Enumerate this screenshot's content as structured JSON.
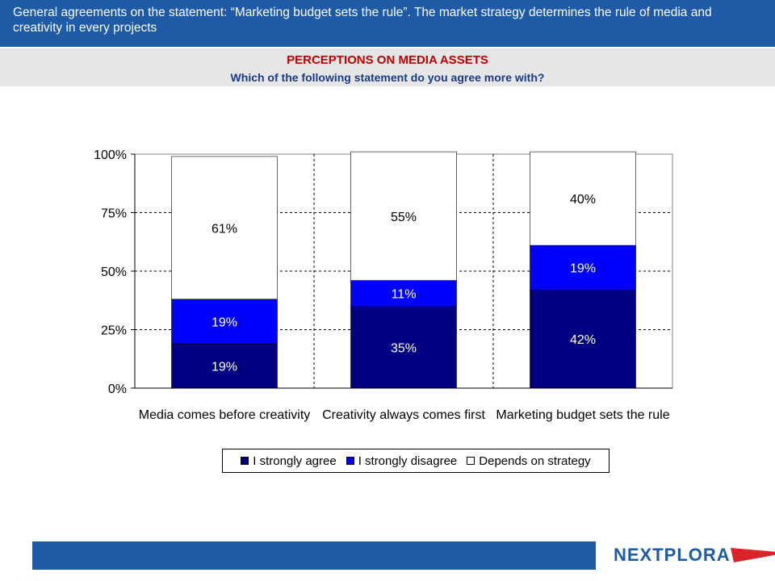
{
  "header": {
    "description": "General agreements on the statement: “Marketing budget sets the rule”. The market strategy determines the rule of media and creativity in every projects"
  },
  "section": {
    "title": "PERCEPTIONS ON MEDIA ASSETS",
    "question": "Which of the following statement do you agree more with?"
  },
  "colors": {
    "strongly_agree": "#000080",
    "strongly_disagree": "#0000ff",
    "depends": "#ffffff",
    "header_bar": "#1f5aa6"
  },
  "chart_data": {
    "type": "bar",
    "stacked": true,
    "categories": [
      "Media comes before creativity",
      "Creativity always comes first",
      "Marketing budget sets the rule"
    ],
    "series": [
      {
        "name": "I strongly agree",
        "values": [
          19,
          35,
          42
        ],
        "labels": [
          "19%",
          "35%",
          "42%"
        ]
      },
      {
        "name": "I strongly disagree",
        "values": [
          19,
          11,
          19
        ],
        "labels": [
          "19%",
          "11%",
          "19%"
        ]
      },
      {
        "name": "Depends on strategy",
        "values": [
          61,
          55,
          40
        ],
        "labels": [
          "61%",
          "55%",
          "40%"
        ]
      }
    ],
    "yticks": [
      "0%",
      "25%",
      "50%",
      "75%",
      "100%"
    ],
    "ylim": [
      0,
      100
    ],
    "grid": true,
    "legend": "bottom"
  },
  "logo": {
    "text": "NEXTPLORA"
  }
}
